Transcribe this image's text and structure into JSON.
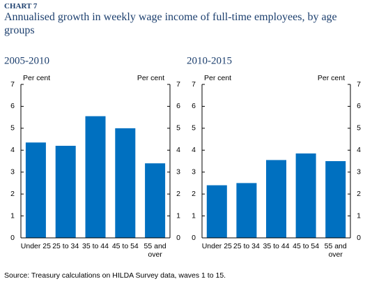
{
  "header": {
    "label": "CHART 7",
    "title": "Annualised growth in weekly wage income of full-time employees, by age groups"
  },
  "chart_data": [
    {
      "type": "bar",
      "title": "2005-2010",
      "ylabel": "Per cent",
      "y2label": "Per cent",
      "categories": [
        "Under 25",
        "25 to 34",
        "35 to 44",
        "45 to 54",
        "55 and over"
      ],
      "values": [
        4.35,
        4.2,
        5.55,
        5.0,
        3.4
      ],
      "color": "#0070c0",
      "ylim": [
        0,
        7
      ],
      "yticks": [
        0,
        1,
        2,
        3,
        4,
        5,
        6,
        7
      ],
      "y2lim": [
        0,
        7
      ],
      "y2ticks": [
        0,
        1,
        2,
        3,
        4,
        5,
        6,
        7
      ]
    },
    {
      "type": "bar",
      "title": "2010-2015",
      "ylabel": "Per cent",
      "y2label": "Per cent",
      "categories": [
        "Under 25",
        "25 to 34",
        "35 to 44",
        "45 to 54",
        "55 and over"
      ],
      "values": [
        2.4,
        2.5,
        3.55,
        3.85,
        3.5
      ],
      "color": "#0070c0",
      "ylim": [
        0,
        7
      ],
      "yticks": [
        0,
        1,
        2,
        3,
        4,
        5,
        6,
        7
      ],
      "y2lim": [
        0,
        7
      ],
      "y2ticks": [
        0,
        1,
        2,
        3,
        4,
        5,
        6,
        7
      ]
    }
  ],
  "source": "Source: Treasury calculations on HILDA Survey data, waves 1 to 15."
}
